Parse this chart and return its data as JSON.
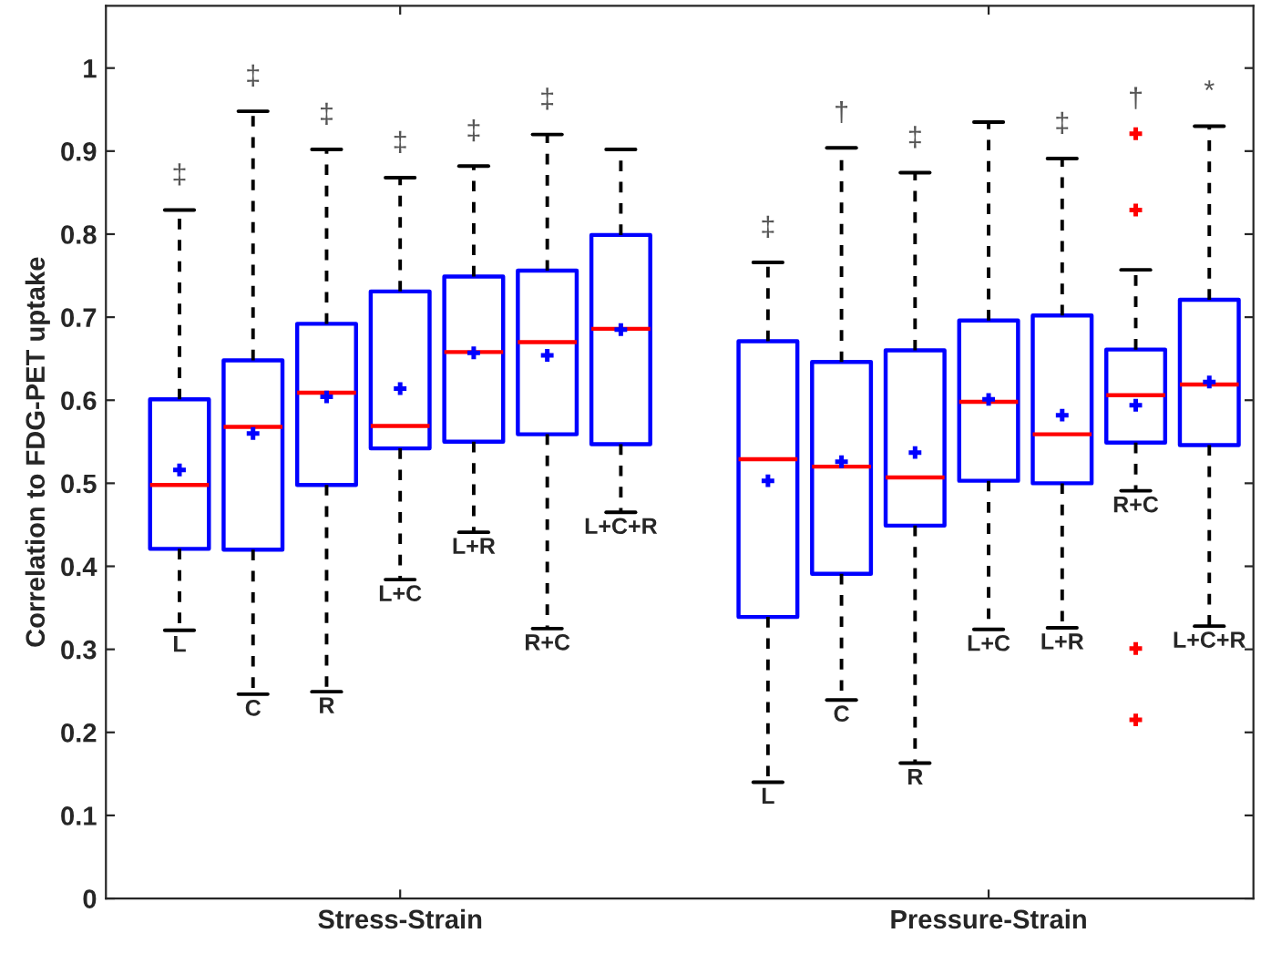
{
  "chart_data": {
    "type": "box",
    "ylabel": "Correlation to FDG-PET uptake",
    "categories": [
      "L",
      "C",
      "R",
      "L+C",
      "L+R",
      "R+C",
      "L+C+R",
      null,
      "L",
      "C",
      "R",
      "L+C",
      "L+R",
      "R+C",
      "L+C+R"
    ],
    "annotations": [
      "Stress-Strain",
      "Pressure-Strain"
    ],
    "ylim": [
      0,
      1.075
    ],
    "yticks": [
      0,
      0.1,
      0.2,
      0.3,
      0.4,
      0.5,
      0.6,
      0.7,
      0.8,
      0.9,
      1
    ],
    "color": "#0000ff",
    "value_labels": [
      "‡",
      "‡",
      "‡",
      "‡",
      "‡",
      "‡",
      null,
      null,
      "‡",
      "†",
      "‡",
      null,
      "‡",
      "†",
      "*"
    ],
    "boxes": [
      {
        "low": 0.323,
        "q1": 0.421,
        "median": 0.498,
        "q3": 0.601,
        "high": 0.829,
        "mean": 0.516
      },
      {
        "low": 0.246,
        "q1": 0.42,
        "median": 0.568,
        "q3": 0.648,
        "high": 0.948,
        "mean": 0.56
      },
      {
        "low": 0.249,
        "q1": 0.498,
        "median": 0.609,
        "q3": 0.692,
        "high": 0.902,
        "mean": 0.604
      },
      {
        "low": 0.384,
        "q1": 0.542,
        "median": 0.569,
        "q3": 0.731,
        "high": 0.868,
        "mean": 0.614
      },
      {
        "low": 0.441,
        "q1": 0.55,
        "median": 0.658,
        "q3": 0.749,
        "high": 0.882,
        "mean": 0.657
      },
      {
        "low": 0.325,
        "q1": 0.559,
        "median": 0.67,
        "q3": 0.756,
        "high": 0.92,
        "mean": 0.654
      },
      {
        "low": 0.465,
        "q1": 0.547,
        "median": 0.686,
        "q3": 0.799,
        "high": 0.902,
        "mean": 0.685
      },
      null,
      {
        "low": 0.14,
        "q1": 0.339,
        "median": 0.529,
        "q3": 0.671,
        "high": 0.766,
        "mean": 0.503
      },
      {
        "low": 0.239,
        "q1": 0.391,
        "median": 0.52,
        "q3": 0.646,
        "high": 0.904,
        "mean": 0.526
      },
      {
        "low": 0.163,
        "q1": 0.449,
        "median": 0.507,
        "q3": 0.66,
        "high": 0.874,
        "mean": 0.537
      },
      {
        "low": 0.324,
        "q1": 0.503,
        "median": 0.598,
        "q3": 0.696,
        "high": 0.935,
        "mean": 0.601
      },
      {
        "low": 0.326,
        "q1": 0.5,
        "median": 0.559,
        "q3": 0.702,
        "high": 0.891,
        "mean": 0.582
      },
      {
        "low": 0.491,
        "q1": 0.549,
        "median": 0.606,
        "q3": 0.661,
        "high": 0.757,
        "mean": 0.594,
        "outliers": [
          0.921,
          0.829,
          0.301,
          0.215
        ]
      },
      {
        "low": 0.328,
        "q1": 0.546,
        "median": 0.619,
        "q3": 0.721,
        "high": 0.93,
        "mean": 0.622
      }
    ]
  }
}
